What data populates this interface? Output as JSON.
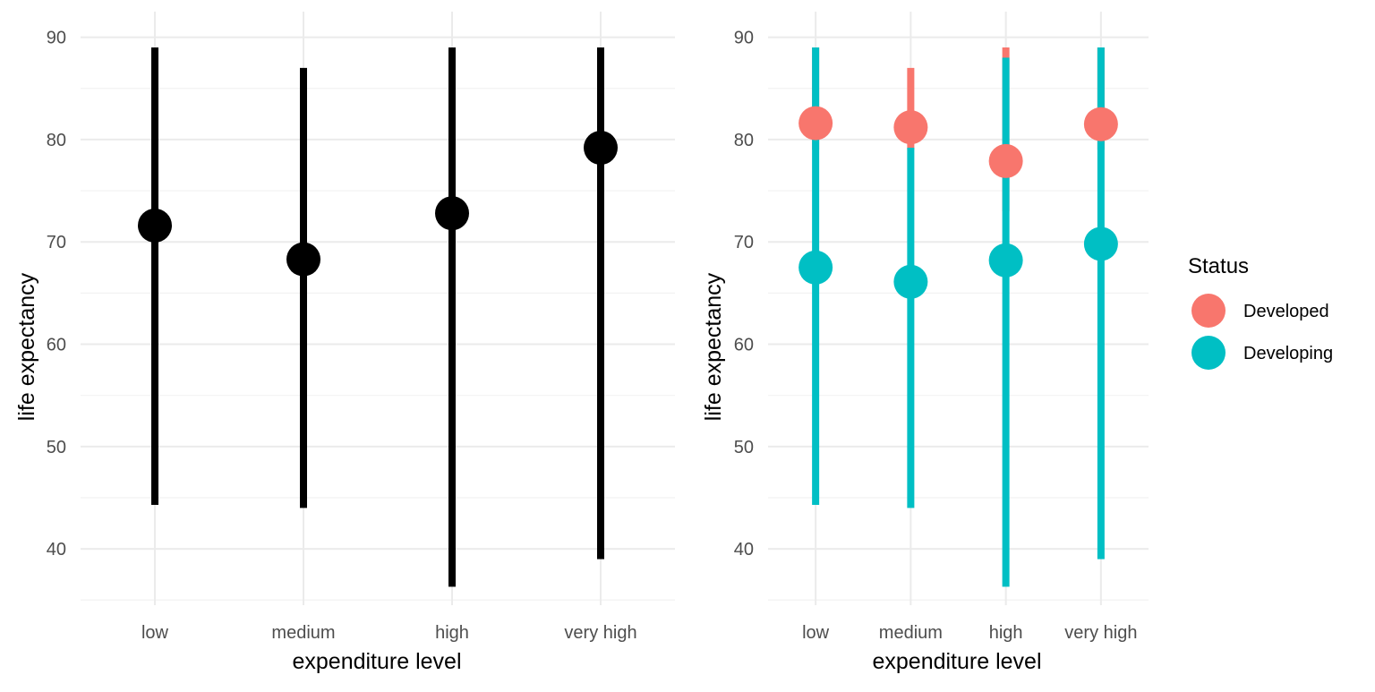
{
  "chart_data": [
    {
      "type": "pointrange",
      "xlabel": "expenditure level",
      "ylabel": "life expectancy",
      "categories": [
        "low",
        "medium",
        "high",
        "very high"
      ],
      "ylim": [
        34.5,
        92.5
      ],
      "yticks": [
        40,
        50,
        60,
        70,
        80,
        90
      ],
      "grid": true,
      "series": [
        {
          "color": "#000000",
          "points": [
            {
              "x": "low",
              "y": 71.6,
              "ymin": 44.3,
              "ymax": 89.0
            },
            {
              "x": "medium",
              "y": 68.3,
              "ymin": 44.0,
              "ymax": 87.0
            },
            {
              "x": "high",
              "y": 72.8,
              "ymin": 36.3,
              "ymax": 89.0
            },
            {
              "x": "very high",
              "y": 79.2,
              "ymin": 39.0,
              "ymax": 89.0
            }
          ]
        }
      ]
    },
    {
      "type": "pointrange",
      "xlabel": "expenditure level",
      "ylabel": "life expectancy",
      "categories": [
        "low",
        "medium",
        "high",
        "very high"
      ],
      "ylim": [
        34.5,
        92.5
      ],
      "yticks": [
        40,
        50,
        60,
        70,
        80,
        90
      ],
      "grid": true,
      "legend": {
        "title": "Status",
        "position": "right"
      },
      "series": [
        {
          "name": "Developed",
          "color": "#F8766D",
          "points": [
            {
              "x": "low",
              "y": 81.6,
              "ymin": 79.0,
              "ymax": 89.0
            },
            {
              "x": "medium",
              "y": 81.2,
              "ymin": 79.0,
              "ymax": 87.0
            },
            {
              "x": "high",
              "y": 77.9,
              "ymin": 73.0,
              "ymax": 89.0
            },
            {
              "x": "very high",
              "y": 81.5,
              "ymin": 79.0,
              "ymax": 89.0
            }
          ]
        },
        {
          "name": "Developing",
          "color": "#00BFC4",
          "points": [
            {
              "x": "low",
              "y": 67.5,
              "ymin": 44.3,
              "ymax": 89.0
            },
            {
              "x": "medium",
              "y": 66.1,
              "ymin": 44.0,
              "ymax": 79.2
            },
            {
              "x": "high",
              "y": 68.2,
              "ymin": 36.3,
              "ymax": 88.0
            },
            {
              "x": "very high",
              "y": 69.8,
              "ymin": 39.0,
              "ymax": 89.0
            }
          ]
        }
      ]
    }
  ]
}
